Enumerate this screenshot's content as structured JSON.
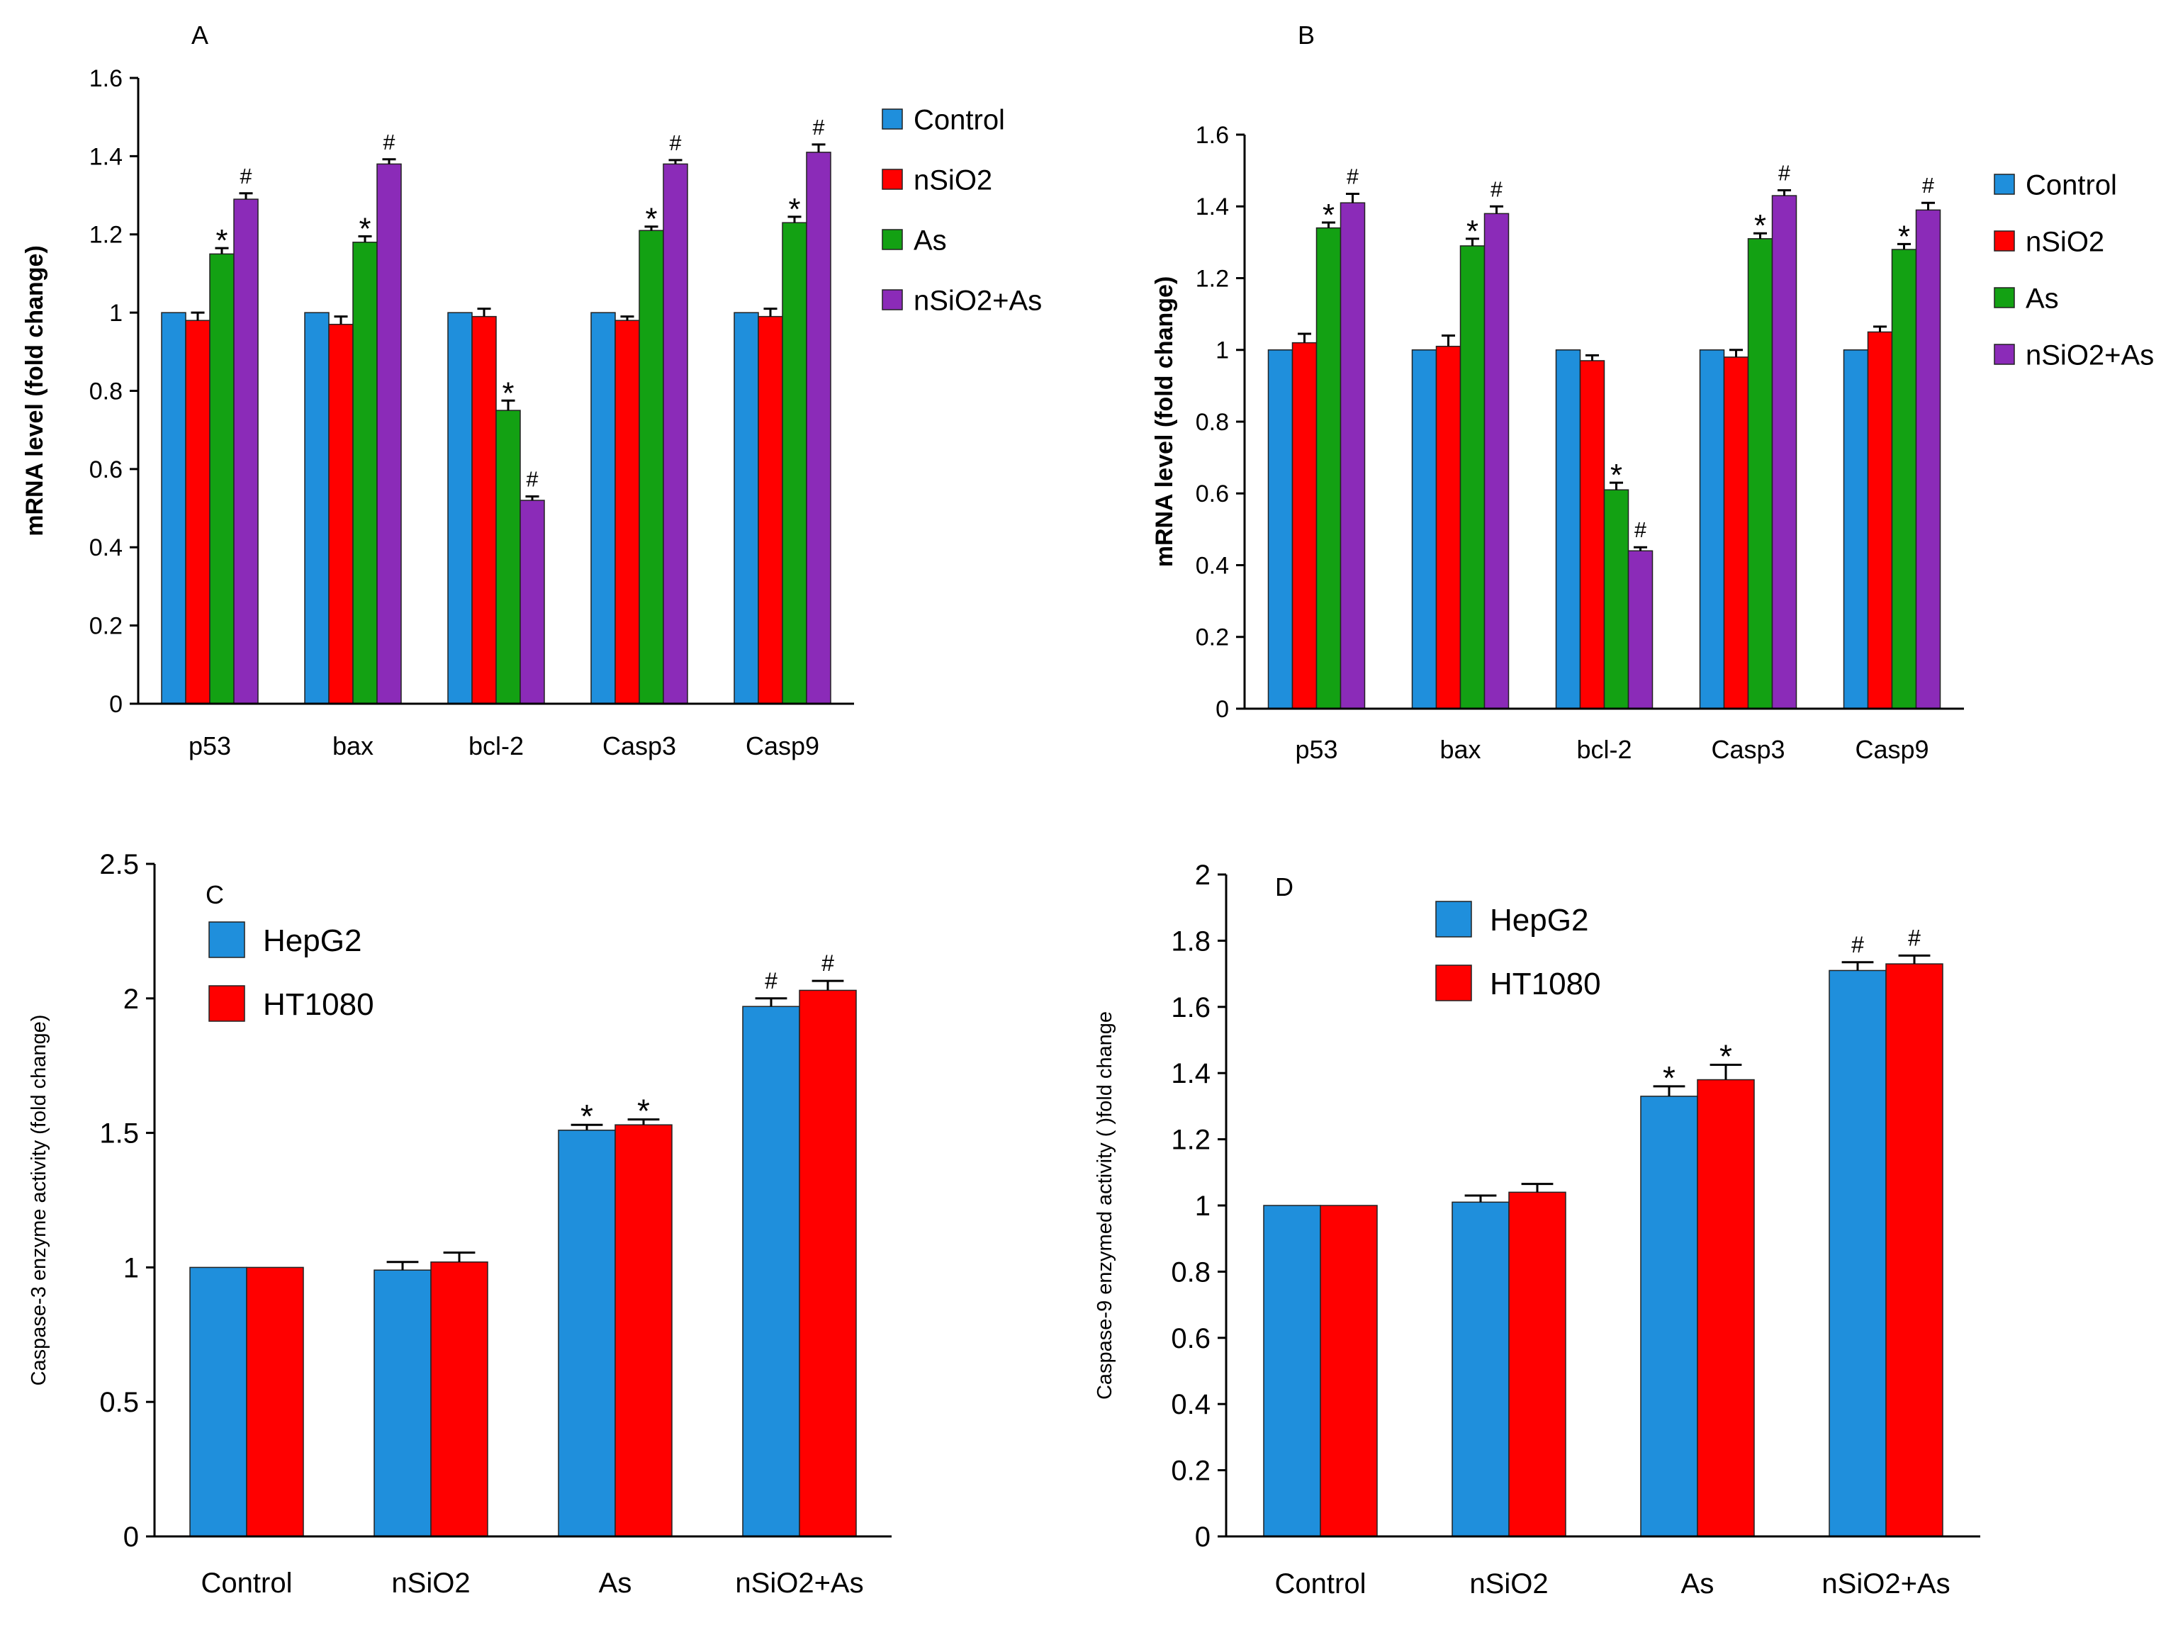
{
  "colors": {
    "Control": "#1f8fdc",
    "nSiO2": "#ff0000",
    "As": "#13a113",
    "nSiO2+As": "#8b2bb8",
    "HepG2": "#1f8fdc",
    "HT1080": "#ff0000",
    "axis": "#000000"
  },
  "chart_data": [
    {
      "id": "A",
      "panel_label": "A",
      "type": "bar",
      "title": "",
      "xlabel": "",
      "ylabel": "mRNA level (fold change)",
      "ylim": [
        0,
        1.6
      ],
      "yticks": [
        "0",
        "0.2",
        "0.4",
        "0.6",
        "0.8",
        "1",
        "1.2",
        "1.4",
        "1.6"
      ],
      "categories": [
        "p53",
        "bax",
        "bcl-2",
        "Casp3",
        "Casp9"
      ],
      "legend_position": "right",
      "series": [
        {
          "name": "Control",
          "values": [
            1.0,
            1.0,
            1.0,
            1.0,
            1.0
          ],
          "errors": [
            0,
            0,
            0,
            0,
            0
          ],
          "markers": [
            "",
            "",
            "",
            "",
            ""
          ]
        },
        {
          "name": "nSiO2",
          "values": [
            0.98,
            0.97,
            0.99,
            0.98,
            0.99
          ],
          "errors": [
            0.02,
            0.02,
            0.02,
            0.01,
            0.02
          ],
          "markers": [
            "",
            "",
            "",
            "",
            ""
          ]
        },
        {
          "name": "As",
          "values": [
            1.15,
            1.18,
            0.75,
            1.21,
            1.23
          ],
          "errors": [
            0.015,
            0.015,
            0.025,
            0.01,
            0.015
          ],
          "markers": [
            "*",
            "*",
            "*",
            "*",
            "*"
          ]
        },
        {
          "name": "nSiO2+As",
          "values": [
            1.29,
            1.38,
            0.52,
            1.38,
            1.41
          ],
          "errors": [
            0.015,
            0.012,
            0.01,
            0.01,
            0.02
          ],
          "markers": [
            "#",
            "#",
            "#",
            "#",
            "#"
          ]
        }
      ]
    },
    {
      "id": "B",
      "panel_label": "B",
      "type": "bar",
      "title": "",
      "xlabel": "",
      "ylabel": "mRNA level (fold change)",
      "ylim": [
        0,
        1.6
      ],
      "yticks": [
        "0",
        "0.2",
        "0.4",
        "0.6",
        "0.8",
        "1",
        "1.2",
        "1.4",
        "1.6"
      ],
      "categories": [
        "p53",
        "bax",
        "bcl-2",
        "Casp3",
        "Casp9"
      ],
      "legend_position": "right",
      "series": [
        {
          "name": "Control",
          "values": [
            1.0,
            1.0,
            1.0,
            1.0,
            1.0
          ],
          "errors": [
            0,
            0,
            0,
            0,
            0
          ],
          "markers": [
            "",
            "",
            "",
            "",
            ""
          ]
        },
        {
          "name": "nSiO2",
          "values": [
            1.02,
            1.01,
            0.97,
            0.98,
            1.05
          ],
          "errors": [
            0.025,
            0.03,
            0.015,
            0.02,
            0.015
          ],
          "markers": [
            "",
            "",
            "",
            "",
            ""
          ]
        },
        {
          "name": "As",
          "values": [
            1.34,
            1.29,
            0.61,
            1.31,
            1.28
          ],
          "errors": [
            0.015,
            0.02,
            0.02,
            0.015,
            0.015
          ],
          "markers": [
            "*",
            "*",
            "*",
            "*",
            "*"
          ]
        },
        {
          "name": "nSiO2+As",
          "values": [
            1.41,
            1.38,
            0.44,
            1.43,
            1.39
          ],
          "errors": [
            0.025,
            0.02,
            0.01,
            0.015,
            0.02
          ],
          "markers": [
            "#",
            "#",
            "#",
            "#",
            "#"
          ]
        }
      ]
    },
    {
      "id": "C",
      "panel_label": "C",
      "type": "bar",
      "title": "",
      "xlabel": "",
      "ylabel": "Caspase-3 enzyme activity (fold change)",
      "ylim": [
        0,
        2.5
      ],
      "yticks": [
        "0",
        "0.5",
        "1",
        "1.5",
        "2",
        "2.5"
      ],
      "categories": [
        "Control",
        "nSiO2",
        "As",
        "nSiO2+As"
      ],
      "legend_position": "top-left",
      "series": [
        {
          "name": "HepG2",
          "values": [
            1.0,
            0.99,
            1.51,
            1.97
          ],
          "errors": [
            0,
            0.03,
            0.02,
            0.03
          ],
          "markers": [
            "",
            "",
            "*",
            "#"
          ]
        },
        {
          "name": "HT1080",
          "values": [
            1.0,
            1.02,
            1.53,
            2.03
          ],
          "errors": [
            0,
            0.035,
            0.02,
            0.035
          ],
          "markers": [
            "",
            "",
            "*",
            "#"
          ]
        }
      ]
    },
    {
      "id": "D",
      "panel_label": "D",
      "type": "bar",
      "title": "",
      "xlabel": "",
      "ylabel": "Caspase-9 enzymed activity ( )fold change",
      "ylim": [
        0,
        2
      ],
      "yticks": [
        "0",
        "0.2",
        "0.4",
        "0.6",
        "0.8",
        "1",
        "1.2",
        "1.4",
        "1.6",
        "1.8",
        "2"
      ],
      "categories": [
        "Control",
        "nSiO2",
        "As",
        "nSiO2+As"
      ],
      "legend_position": "top-left",
      "series": [
        {
          "name": "HepG2",
          "values": [
            1.0,
            1.01,
            1.33,
            1.71
          ],
          "errors": [
            0,
            0.02,
            0.03,
            0.025
          ],
          "markers": [
            "",
            "",
            "*",
            "#"
          ]
        },
        {
          "name": "HT1080",
          "values": [
            1.0,
            1.04,
            1.38,
            1.73
          ],
          "errors": [
            0,
            0.025,
            0.045,
            0.025
          ],
          "markers": [
            "",
            "",
            "*",
            "#"
          ]
        }
      ]
    }
  ]
}
